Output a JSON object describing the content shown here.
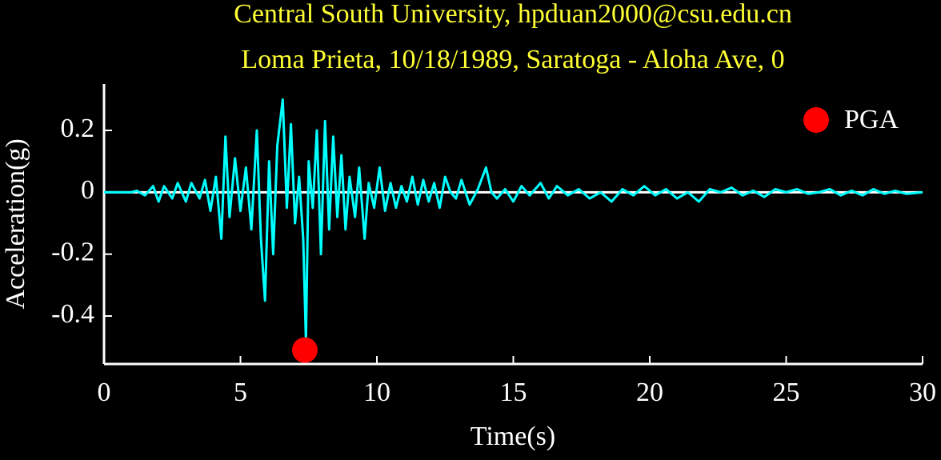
{
  "chart_data": {
    "type": "line",
    "title": "Central South University, hpduan2000@csu.edu.cn",
    "subtitle": "Loma Prieta, 10/18/1989, Saratoga - Aloha Ave, 0",
    "xlabel": "Time(s)",
    "ylabel": "Acceleration(g)",
    "xlim": [
      0,
      30
    ],
    "ylim": [
      -0.555,
      0.35
    ],
    "xticks": [
      0,
      5,
      10,
      15,
      20,
      25,
      30
    ],
    "yticks": [
      -0.4,
      -0.2,
      0,
      0.2
    ],
    "zero_line": true,
    "legend": "upper right",
    "x": [
      0,
      1.0,
      1.2,
      1.5,
      1.8,
      2.0,
      2.2,
      2.5,
      2.7,
      3.0,
      3.2,
      3.5,
      3.7,
      3.9,
      4.1,
      4.3,
      4.45,
      4.6,
      4.8,
      5.0,
      5.2,
      5.4,
      5.6,
      5.75,
      5.9,
      6.05,
      6.2,
      6.35,
      6.55,
      6.7,
      6.85,
      7.0,
      7.15,
      7.3,
      7.4,
      7.5,
      7.65,
      7.8,
      7.95,
      8.1,
      8.25,
      8.4,
      8.55,
      8.7,
      8.85,
      9.0,
      9.2,
      9.35,
      9.55,
      9.7,
      9.9,
      10.1,
      10.3,
      10.5,
      10.7,
      10.9,
      11.1,
      11.3,
      11.5,
      11.7,
      11.9,
      12.1,
      12.3,
      12.5,
      12.7,
      12.9,
      13.1,
      13.4,
      13.7,
      14.0,
      14.2,
      14.4,
      14.7,
      15.0,
      15.3,
      15.6,
      16.0,
      16.3,
      16.6,
      17.0,
      17.4,
      17.8,
      18.2,
      18.6,
      19.0,
      19.4,
      19.8,
      20.2,
      20.6,
      21.0,
      21.4,
      21.8,
      22.2,
      22.6,
      23.0,
      23.4,
      23.8,
      24.2,
      24.6,
      25.0,
      25.4,
      25.8,
      26.2,
      26.6,
      27.0,
      27.4,
      27.8,
      28.2,
      28.6,
      29.0,
      29.4,
      30
    ],
    "series": [
      {
        "color": "#00ffff",
        "values": [
          0,
          0,
          0.005,
          -0.01,
          0.02,
          -0.03,
          0.02,
          -0.02,
          0.03,
          -0.03,
          0.03,
          -0.02,
          0.04,
          -0.06,
          0.05,
          -0.15,
          0.18,
          -0.08,
          0.11,
          -0.06,
          0.08,
          -0.12,
          0.2,
          -0.15,
          -0.35,
          0.1,
          -0.2,
          0.15,
          0.3,
          -0.05,
          0.22,
          -0.1,
          0.05,
          -0.15,
          -0.48,
          0.1,
          -0.05,
          0.2,
          -0.2,
          0.23,
          -0.12,
          0.18,
          -0.08,
          0.12,
          -0.12,
          0.05,
          -0.08,
          0.08,
          -0.15,
          0.03,
          -0.05,
          0.08,
          -0.06,
          0.03,
          -0.05,
          0.02,
          -0.03,
          0.05,
          -0.04,
          0.04,
          -0.03,
          0.03,
          -0.05,
          0.05,
          0,
          -0.02,
          0.04,
          -0.04,
          0.01,
          0.08,
          0,
          -0.02,
          0.01,
          -0.03,
          0.02,
          -0.01,
          0.03,
          -0.02,
          0.02,
          -0.01,
          0.01,
          -0.02,
          0,
          -0.03,
          0.01,
          -0.01,
          0.02,
          -0.01,
          0.01,
          -0.02,
          0,
          -0.03,
          0.01,
          0,
          0.015,
          -0.01,
          0.005,
          -0.015,
          0.01,
          0,
          0.01,
          -0.005,
          0,
          0.01,
          -0.01,
          0.005,
          -0.01,
          0.01,
          -0.005,
          0.005,
          -0.005,
          0
        ]
      }
    ],
    "pga": {
      "name": "PGA",
      "color": "#ff0000",
      "x": 7.36,
      "value": -0.51
    }
  }
}
